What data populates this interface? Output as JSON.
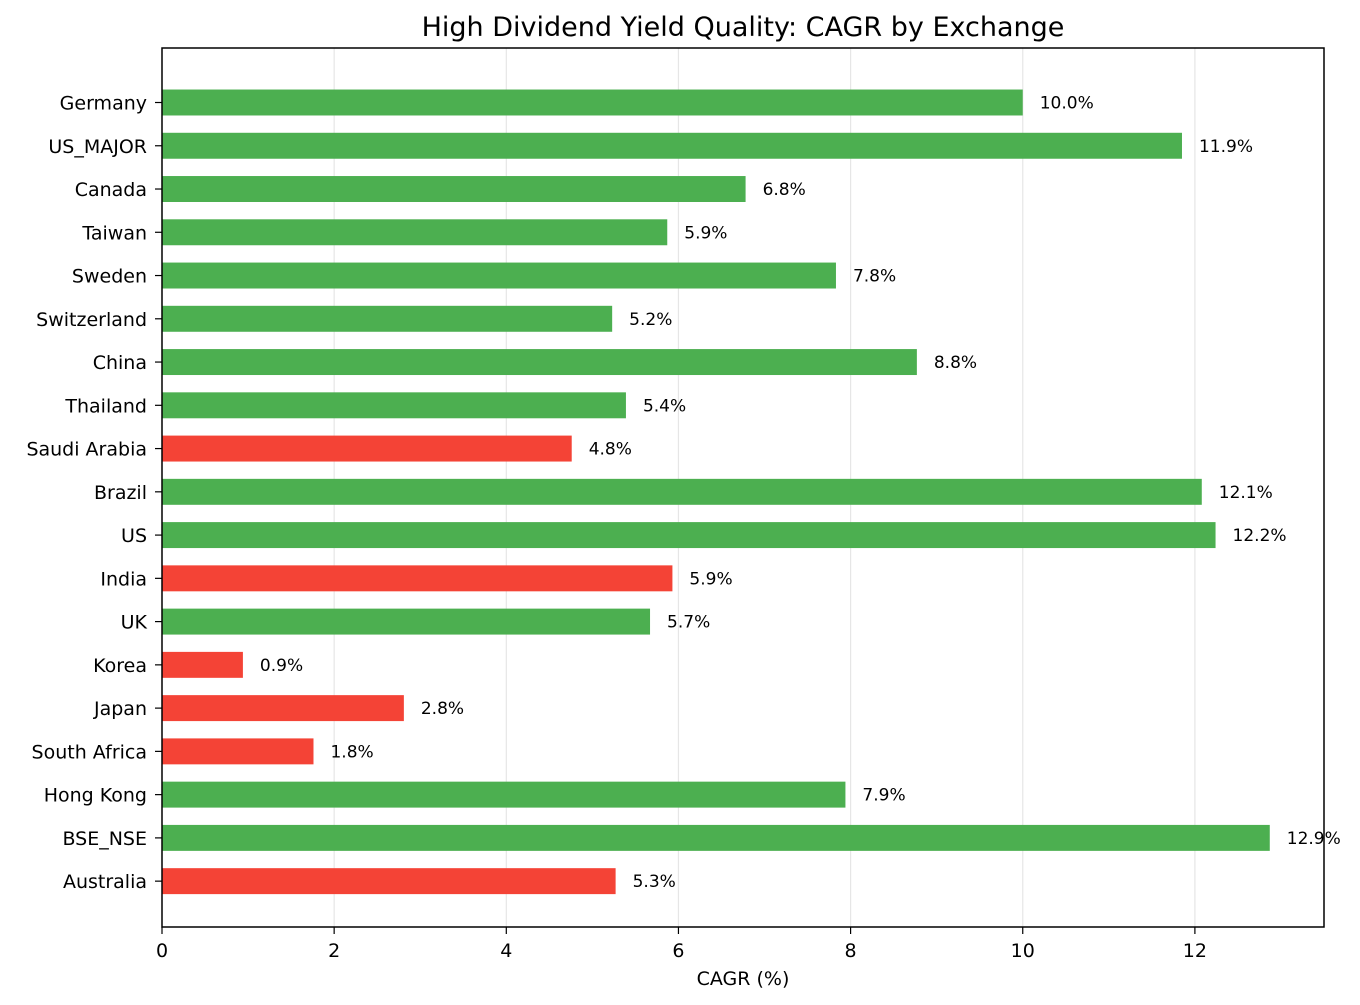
{
  "chart_data": {
    "type": "bar",
    "orientation": "horizontal",
    "title": "High Dividend Yield Quality: CAGR by Exchange",
    "xlabel": "CAGR (%)",
    "ylabel": "",
    "xlim": [
      0,
      13.5
    ],
    "xticks": [
      "0",
      "2",
      "4",
      "6",
      "8",
      "10",
      "12"
    ],
    "grid": "vertical",
    "legend": "none",
    "colors": {
      "positive": "#4caf50",
      "negative": "#f44336",
      "grid": "#e6e6e6",
      "axis": "#000000"
    },
    "categories": [
      "Germany",
      "US_MAJOR",
      "Canada",
      "Taiwan",
      "Sweden",
      "Switzerland",
      "China",
      "Thailand",
      "Saudi Arabia",
      "Brazil",
      "US",
      "India",
      "UK",
      "Korea",
      "Japan",
      "South Africa",
      "Hong Kong",
      "BSE_NSE",
      "Australia"
    ],
    "values": [
      10.0,
      11.85,
      6.78,
      5.87,
      7.83,
      5.23,
      8.77,
      5.39,
      4.76,
      12.08,
      12.24,
      5.93,
      5.67,
      0.94,
      2.81,
      1.76,
      7.94,
      12.87,
      5.27
    ],
    "labels": [
      "10.0%",
      "11.9%",
      "6.8%",
      "5.9%",
      "7.8%",
      "5.2%",
      "8.8%",
      "5.4%",
      "4.8%",
      "12.1%",
      "12.2%",
      "5.9%",
      "5.7%",
      "0.9%",
      "2.8%",
      "1.8%",
      "7.9%",
      "12.9%",
      "5.3%"
    ],
    "bar_status": [
      "positive",
      "positive",
      "positive",
      "positive",
      "positive",
      "positive",
      "positive",
      "positive",
      "negative",
      "positive",
      "positive",
      "negative",
      "positive",
      "negative",
      "negative",
      "negative",
      "positive",
      "positive",
      "negative"
    ]
  }
}
